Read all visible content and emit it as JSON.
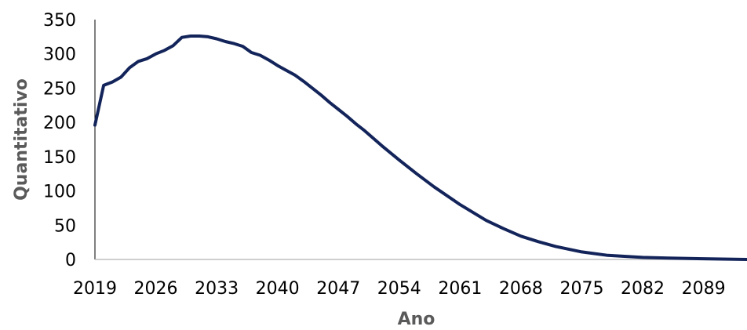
{
  "chart_data": {
    "type": "line",
    "xlabel": "Ano",
    "ylabel": "Quantitativo",
    "ylim": [
      0,
      350
    ],
    "yticks": [
      0,
      50,
      100,
      150,
      200,
      250,
      300,
      350
    ],
    "xticks": [
      2019,
      2026,
      2033,
      2040,
      2047,
      2054,
      2061,
      2068,
      2075,
      2082,
      2089
    ],
    "xlim": [
      2019,
      2094
    ],
    "grid": false,
    "legend": "none",
    "line_color": "#13245a",
    "series": [
      {
        "x": [
          2019,
          2020,
          2021,
          2022,
          2023,
          2024,
          2025,
          2026,
          2027,
          2028,
          2029,
          2030,
          2031,
          2032,
          2033,
          2034,
          2035,
          2036,
          2037,
          2038,
          2039,
          2040,
          2041,
          2042,
          2043,
          2044,
          2045,
          2046,
          2047,
          2048,
          2049,
          2050,
          2052,
          2054,
          2056,
          2058,
          2061,
          2064,
          2066,
          2068,
          2070,
          2072,
          2075,
          2078,
          2082,
          2085,
          2089,
          2094
        ],
        "y": [
          196,
          254,
          259,
          266,
          280,
          289,
          293,
          300,
          305,
          312,
          324,
          326,
          326,
          325,
          322,
          318,
          315,
          311,
          302,
          298,
          291,
          283,
          276,
          269,
          260,
          250,
          240,
          229,
          219,
          209,
          198,
          188,
          166,
          145,
          125,
          106,
          80,
          57,
          45,
          34,
          26,
          19,
          11,
          6,
          3,
          2,
          1,
          0
        ]
      }
    ]
  }
}
